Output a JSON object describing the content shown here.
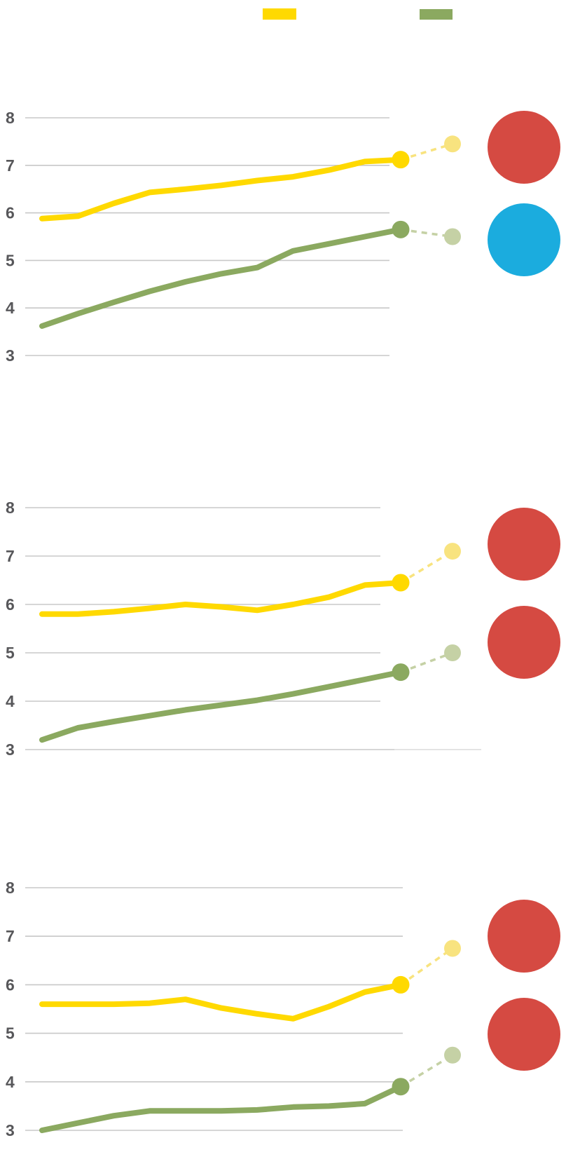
{
  "colors": {
    "yellow": "#FFD900",
    "yellow_light": "#F8E37F",
    "green": "#8BA960",
    "green_light": "#C5D1A5",
    "red": "#D54A42",
    "blue": "#1BACDE",
    "gridline": "#C8C8C8",
    "gridline_light": "#DCDCDC",
    "axis_label": "#57575A",
    "background": "#FFFFFF"
  },
  "legend": {
    "items": [
      {
        "series": "yellow",
        "label": ""
      },
      {
        "series": "green",
        "label": ""
      }
    ]
  },
  "chart_data": [
    {
      "type": "line",
      "title": "",
      "xlabel": "",
      "ylabel": "",
      "yticks": [
        8,
        7,
        6,
        5,
        4,
        3
      ],
      "ylim": [
        2.7,
        8.6
      ],
      "grid": true,
      "legend_position": "top",
      "series": [
        {
          "name": "yellow",
          "values": [
            5.88,
            5.93,
            6.2,
            6.43,
            6.5,
            6.58,
            6.68,
            6.76,
            6.9,
            7.08,
            7.12
          ],
          "end_dot": 7.12,
          "projected": 7.45
        },
        {
          "name": "green",
          "values": [
            3.62,
            3.88,
            4.12,
            4.35,
            4.55,
            4.72,
            4.85,
            5.2,
            5.35,
            5.5,
            5.65
          ],
          "end_dot": 5.65,
          "projected": 5.5
        }
      ],
      "badges": [
        {
          "color": "red"
        },
        {
          "color": "blue"
        }
      ]
    },
    {
      "type": "line",
      "title": "",
      "xlabel": "",
      "ylabel": "",
      "yticks": [
        8,
        7,
        6,
        5,
        4,
        3
      ],
      "ylim": [
        2.7,
        8.6
      ],
      "grid": true,
      "legend_position": "top",
      "series": [
        {
          "name": "yellow",
          "values": [
            5.8,
            5.8,
            5.85,
            5.92,
            6.0,
            5.95,
            5.88,
            6.0,
            6.15,
            6.4,
            6.45
          ],
          "end_dot": 6.45,
          "projected": 7.1
        },
        {
          "name": "green",
          "values": [
            3.2,
            3.45,
            3.58,
            3.7,
            3.82,
            3.92,
            4.02,
            4.15,
            4.3,
            4.45,
            4.6
          ],
          "end_dot": 4.6,
          "projected": 5.0
        }
      ],
      "badges": [
        {
          "color": "red"
        },
        {
          "color": "red"
        }
      ]
    },
    {
      "type": "line",
      "title": "",
      "xlabel": "",
      "ylabel": "",
      "yticks": [
        8,
        7,
        6,
        5,
        4,
        3
      ],
      "ylim": [
        2.7,
        8.6
      ],
      "grid": true,
      "legend_position": "top",
      "series": [
        {
          "name": "yellow",
          "values": [
            5.6,
            5.6,
            5.6,
            5.62,
            5.7,
            5.52,
            5.4,
            5.3,
            5.55,
            5.85,
            6.0
          ],
          "end_dot": 6.0,
          "projected": 6.75
        },
        {
          "name": "green",
          "values": [
            3.0,
            3.15,
            3.3,
            3.4,
            3.4,
            3.4,
            3.42,
            3.48,
            3.5,
            3.55,
            3.9
          ],
          "end_dot": 3.9,
          "projected": 4.55
        }
      ],
      "badges": [
        {
          "color": "red"
        },
        {
          "color": "red"
        }
      ]
    }
  ]
}
